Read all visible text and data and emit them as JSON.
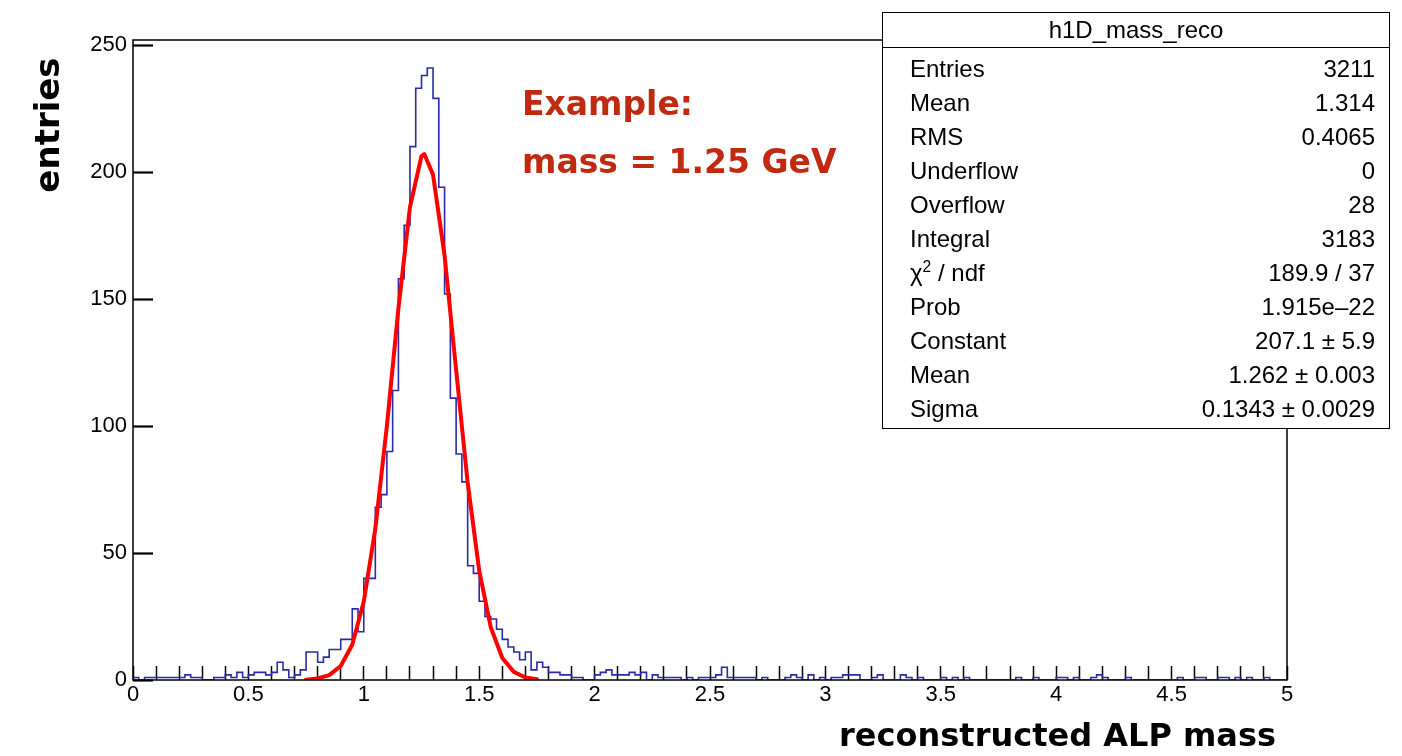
{
  "chart_data": {
    "type": "histogram",
    "xlabel": "reconstructed ALP mass",
    "ylabel": "entries",
    "annotations": [
      "Example:",
      "mass = 1.25 GeV",
      "h1D_mass_reco",
      "Entries",
      "3211",
      "Mean",
      "1.314",
      "RMS",
      "0.4065",
      "Underflow",
      "0",
      "Overflow",
      "28",
      "Integral",
      "3183",
      "χ$^{2}$ / ndf",
      "189.9 / 37",
      "Prob",
      "1.915e–22",
      "Constant",
      "207.1 ± 5.9",
      "Mean",
      "1.262 ± 0.003",
      "Sigma",
      "0.1343 ± 0.0029"
    ],
    "bins": [
      0,
      0.025,
      0.05,
      0.075,
      0.1,
      0.125,
      0.15,
      0.175,
      0.2,
      0.225,
      0.25,
      0.275,
      0.3,
      0.325,
      0.35,
      0.375,
      0.4,
      0.425,
      0.45,
      0.475,
      0.5,
      0.525,
      0.55,
      0.575,
      0.6,
      0.625,
      0.65,
      0.675,
      0.7,
      0.725,
      0.75,
      0.775,
      0.8,
      0.825,
      0.85,
      0.875,
      0.9,
      0.925,
      0.95,
      0.975,
      1,
      1.025,
      1.05,
      1.075,
      1.1,
      1.125,
      1.15,
      1.175,
      1.2,
      1.225,
      1.25,
      1.275,
      1.3,
      1.325,
      1.35,
      1.375,
      1.4,
      1.425,
      1.45,
      1.475,
      1.5,
      1.525,
      1.55,
      1.575,
      1.6,
      1.625,
      1.65,
      1.675,
      1.7,
      1.725,
      1.75,
      1.775,
      1.8,
      1.825,
      1.85,
      1.875,
      1.9,
      1.925,
      1.95,
      1.975,
      2,
      2.025,
      2.05,
      2.075,
      2.1,
      2.125,
      2.15,
      2.175,
      2.2,
      2.225,
      2.25,
      2.275,
      2.3,
      2.325,
      2.35,
      2.375,
      2.4,
      2.425,
      2.45,
      2.475,
      2.5,
      2.525,
      2.55,
      2.575,
      2.6,
      2.625,
      2.65,
      2.675,
      2.7,
      2.725,
      2.75,
      2.775,
      2.8,
      2.825,
      2.85,
      2.875,
      2.9,
      2.925,
      2.95,
      2.975,
      3,
      3.025,
      3.05,
      3.075,
      3.1,
      3.125,
      3.15,
      3.175,
      3.2,
      3.225,
      3.25,
      3.275,
      3.3,
      3.325,
      3.35,
      3.375,
      3.4,
      3.425,
      3.45,
      3.475,
      3.5,
      3.525,
      3.55,
      3.575,
      3.6,
      3.625,
      3.65,
      3.675,
      3.7,
      3.725,
      3.75,
      3.775,
      3.8,
      3.825,
      3.85,
      3.875,
      3.9,
      3.925,
      3.95,
      3.975,
      4,
      4.025,
      4.05,
      4.075,
      4.1,
      4.125,
      4.15,
      4.175,
      4.2,
      4.225,
      4.25,
      4.275,
      4.3,
      4.325,
      4.35,
      4.375,
      4.4,
      4.425,
      4.45,
      4.475,
      4.5,
      4.525,
      4.55,
      4.575,
      4.6,
      4.625,
      4.65,
      4.675,
      4.7,
      4.725,
      4.75,
      4.775,
      4.8,
      4.825,
      4.85,
      4.875,
      4.9,
      4.925,
      4.95,
      4.975,
      5
    ],
    "series": [
      {
        "color": "#2a2aaa",
        "values": [
          1,
          0,
          1,
          1,
          1,
          1,
          1,
          1,
          1,
          2,
          1,
          1,
          0,
          0,
          1,
          1,
          2,
          1,
          3,
          1,
          2,
          3,
          3,
          2,
          3,
          7,
          4,
          1,
          2,
          4,
          11,
          11,
          7,
          9,
          12,
          12,
          16,
          16,
          28,
          19,
          40,
          40,
          68,
          73,
          90,
          114,
          158,
          179,
          210,
          233,
          238,
          241,
          229,
          194,
          152,
          111,
          89,
          78,
          45,
          42,
          31,
          25,
          24,
          20,
          16,
          13,
          11,
          8,
          11,
          4,
          7,
          5,
          3,
          3,
          2,
          2,
          1,
          1,
          0,
          0,
          2,
          3,
          4,
          2,
          2,
          2,
          3,
          2,
          3,
          0,
          2,
          1,
          1,
          1,
          1,
          0,
          1,
          0,
          1,
          1,
          1,
          2,
          5,
          1,
          1,
          1,
          1,
          1,
          0,
          1,
          0,
          0,
          0,
          1,
          2,
          1,
          0,
          2,
          0,
          1,
          0,
          1,
          1,
          2,
          2,
          2,
          0,
          0,
          1,
          2,
          0,
          0,
          0,
          2,
          1,
          0,
          1,
          0,
          0,
          0,
          1,
          0,
          1,
          0,
          1,
          0,
          0,
          0,
          0,
          0,
          0,
          0,
          0,
          1,
          0,
          0,
          1,
          0,
          0,
          0,
          1,
          1,
          0,
          1,
          0,
          0,
          1,
          2,
          1,
          0,
          0,
          0,
          1,
          0,
          0,
          0,
          0,
          0,
          0,
          0,
          0,
          1,
          0,
          0,
          1,
          1,
          0,
          0,
          1,
          1,
          0,
          1,
          0,
          1,
          0,
          0,
          1,
          0,
          0,
          0
        ]
      },
      {
        "type": "line",
        "color": "#ff0000",
        "x": [
          0.75,
          0.8,
          0.85,
          0.9,
          0.95,
          1,
          1.05,
          1.1,
          1.15,
          1.2,
          1.25,
          1.262,
          1.3,
          1.35,
          1.4,
          1.45,
          1.5,
          1.55,
          1.6,
          1.65,
          1.7,
          1.75
        ],
        "values": [
          0.1,
          0.6,
          1.9,
          5.5,
          13.9,
          30.9,
          59.6,
          100,
          146.3,
          186.2,
          206.3,
          207.1,
          199,
          167.1,
          122.1,
          77.7,
          43.1,
          20.8,
          8.7,
          3.2,
          1,
          0.3
        ]
      }
    ],
    "xlim": [
      0,
      5
    ],
    "xticks": [
      0,
      {
        "value": 0.1,
        "label": null
      },
      {
        "value": 0.2,
        "label": null
      },
      {
        "value": 0.3,
        "label": null
      },
      {
        "value": 0.4,
        "label": null
      },
      0.5,
      {
        "value": 0.6,
        "label": null
      },
      {
        "value": 0.7,
        "label": null
      },
      {
        "value": 0.8,
        "label": null
      },
      {
        "value": 0.9,
        "label": null
      },
      1,
      {
        "value": 1.1,
        "label": null
      },
      {
        "value": 1.2,
        "label": null
      },
      {
        "value": 1.3,
        "label": null
      },
      {
        "value": 1.4,
        "label": null
      },
      1.5,
      {
        "value": 1.6,
        "label": null
      },
      {
        "value": 1.7,
        "label": null
      },
      {
        "value": 1.8,
        "label": null
      },
      {
        "value": 1.9,
        "label": null
      },
      2,
      {
        "value": 2.1,
        "label": null
      },
      {
        "value": 2.2,
        "label": null
      },
      {
        "value": 2.3,
        "label": null
      },
      {
        "value": 2.4,
        "label": null
      },
      2.5,
      {
        "value": 2.6,
        "label": null
      },
      {
        "value": 2.7,
        "label": null
      },
      {
        "value": 2.8,
        "label": null
      },
      {
        "value": 2.9,
        "label": null
      },
      3,
      {
        "value": 3.1,
        "label": null
      },
      {
        "value": 3.2,
        "label": null
      },
      {
        "value": 3.3,
        "label": null
      },
      {
        "value": 3.4,
        "label": null
      },
      3.5,
      {
        "value": 3.6,
        "label": null
      },
      {
        "value": 3.7,
        "label": null
      },
      {
        "value": 3.8,
        "label": null
      },
      {
        "value": 3.9,
        "label": null
      },
      4,
      {
        "value": 4.1,
        "label": null
      },
      {
        "value": 4.2,
        "label": null
      },
      {
        "value": 4.3,
        "label": null
      },
      {
        "value": 4.4,
        "label": null
      },
      4.5,
      {
        "value": 4.6,
        "label": null
      },
      {
        "value": 4.7,
        "label": null
      },
      {
        "value": 4.8,
        "label": null
      },
      {
        "value": 4.9,
        "label": null
      },
      5
    ],
    "ylim": [
      0,
      252
    ],
    "yticks": [
      0,
      50,
      100,
      150,
      200,
      250
    ]
  }
}
